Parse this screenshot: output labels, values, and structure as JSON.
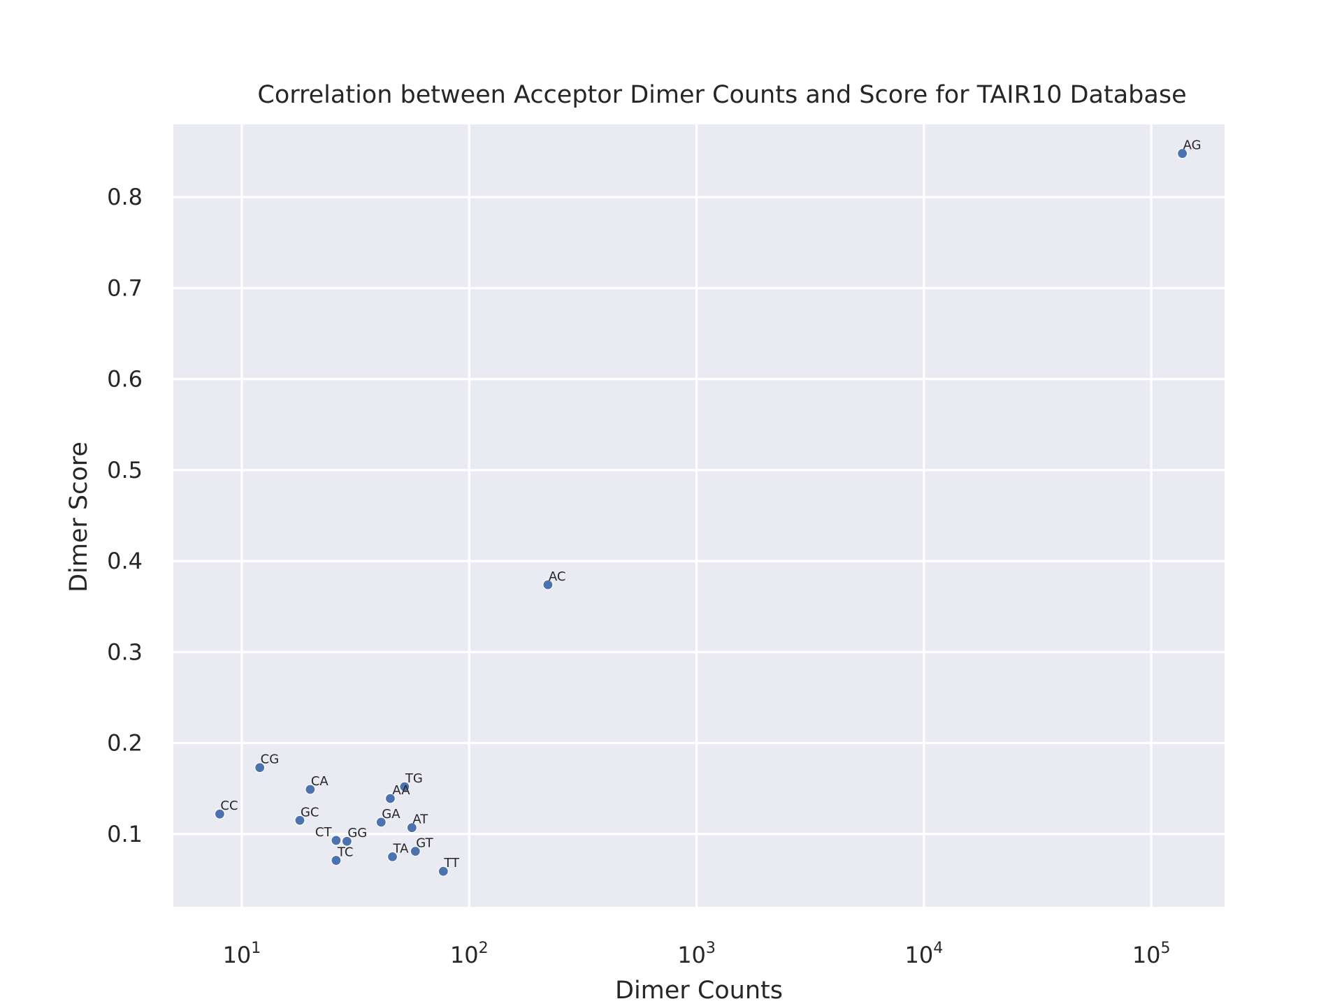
{
  "chart_data": {
    "type": "scatter",
    "title": "Correlation between Acceptor Dimer Counts and Score for TAIR10 Database",
    "xlabel": "Dimer Counts",
    "ylabel": "Dimer Score",
    "xscale": "log",
    "xlim": [
      5,
      210000
    ],
    "ylim": [
      0.02,
      0.88
    ],
    "x_ticks": [
      {
        "value": 10,
        "base": "10",
        "exp": "1"
      },
      {
        "value": 100,
        "base": "10",
        "exp": "2"
      },
      {
        "value": 1000,
        "base": "10",
        "exp": "3"
      },
      {
        "value": 10000,
        "base": "10",
        "exp": "4"
      },
      {
        "value": 100000,
        "base": "10",
        "exp": "5"
      }
    ],
    "y_ticks": [
      {
        "value": 0.1,
        "label": "0.1"
      },
      {
        "value": 0.2,
        "label": "0.2"
      },
      {
        "value": 0.3,
        "label": "0.3"
      },
      {
        "value": 0.4,
        "label": "0.4"
      },
      {
        "value": 0.5,
        "label": "0.5"
      },
      {
        "value": 0.6,
        "label": "0.6"
      },
      {
        "value": 0.7,
        "label": "0.7"
      },
      {
        "value": 0.8,
        "label": "0.8"
      }
    ],
    "grid": true,
    "colors": {
      "point": "#4C72B0",
      "background": "#EAEAF2",
      "grid": "#FFFFFF"
    },
    "points": [
      {
        "label": "AG",
        "x": 137000,
        "y": 0.848
      },
      {
        "label": "AC",
        "x": 222,
        "y": 0.374
      },
      {
        "label": "CG",
        "x": 12,
        "y": 0.173
      },
      {
        "label": "CA",
        "x": 20,
        "y": 0.149
      },
      {
        "label": "TG",
        "x": 52,
        "y": 0.152
      },
      {
        "label": "AA",
        "x": 45,
        "y": 0.139
      },
      {
        "label": "CC",
        "x": 8,
        "y": 0.122
      },
      {
        "label": "GC",
        "x": 18,
        "y": 0.115
      },
      {
        "label": "GA",
        "x": 41,
        "y": 0.113
      },
      {
        "label": "AT",
        "x": 56,
        "y": 0.107
      },
      {
        "label": "CT",
        "x": 26,
        "y": 0.093
      },
      {
        "label": "GG",
        "x": 29,
        "y": 0.092
      },
      {
        "label": "GT",
        "x": 58,
        "y": 0.081
      },
      {
        "label": "TA",
        "x": 46,
        "y": 0.075
      },
      {
        "label": "TC",
        "x": 26,
        "y": 0.071
      },
      {
        "label": "TT",
        "x": 77,
        "y": 0.059
      }
    ]
  }
}
